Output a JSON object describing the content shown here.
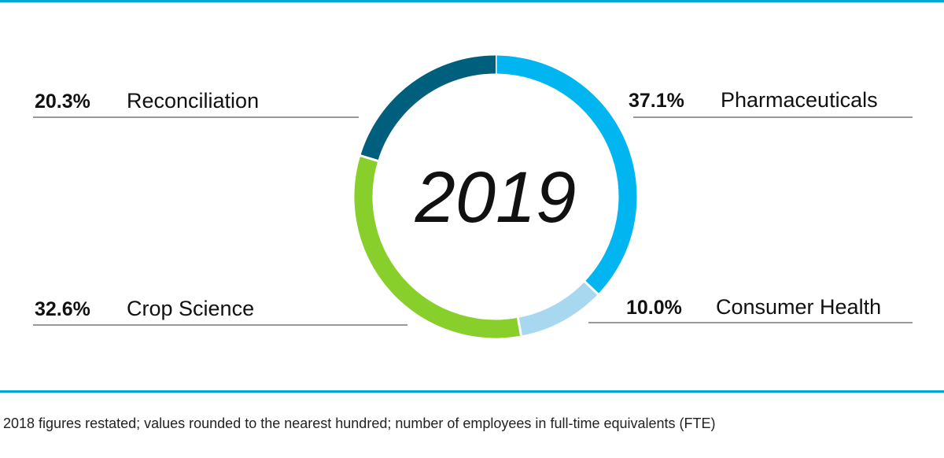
{
  "chart_data": {
    "type": "pie",
    "variant": "donut",
    "center_label": "2019",
    "slices": [
      {
        "label": "Pharmaceuticals",
        "value": 37.1,
        "value_text": "37.1%",
        "color": "#00b5f0"
      },
      {
        "label": "Consumer Health",
        "value": 10.0,
        "value_text": "10.0%",
        "color": "#a8d8f0"
      },
      {
        "label": "Crop Science",
        "value": 32.6,
        "value_text": "32.6%",
        "color": "#89cf2b"
      },
      {
        "label": "Reconciliation",
        "value": 20.3,
        "value_text": "20.3%",
        "color": "#005f7d"
      }
    ]
  },
  "footnote": "2018 figures restated; values rounded to the nearest hundred; number of employees in full-time equivalents (FTE)",
  "colors": {
    "rule": "#00a6d6",
    "text": "#111111"
  }
}
